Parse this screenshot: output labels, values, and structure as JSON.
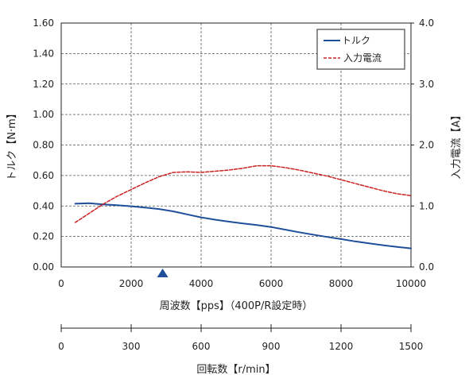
{
  "chart_data": {
    "type": "line",
    "x": {
      "label": "周波数【pps】（400P/R設定時）",
      "range": [
        0,
        10000
      ],
      "ticks": [
        "0",
        "2000",
        "4000",
        "6000",
        "8000",
        "10000"
      ],
      "tick_values": [
        0,
        2000,
        4000,
        6000,
        8000,
        10000
      ]
    },
    "x2": {
      "label": "回転数【r/min】",
      "range": [
        0,
        1500
      ],
      "ticks": [
        "0",
        "300",
        "600",
        "900",
        "1200",
        "1500"
      ],
      "tick_values": [
        0,
        300,
        600,
        900,
        1200,
        1500
      ]
    },
    "y_left": {
      "label": "トルク【N·m】",
      "range": [
        0,
        1.6
      ],
      "ticks": [
        "0.00",
        "0.20",
        "0.40",
        "0.60",
        "0.80",
        "1.00",
        "1.20",
        "1.40",
        "1.60"
      ],
      "tick_values": [
        0,
        0.2,
        0.4,
        0.6,
        0.8,
        1.0,
        1.2,
        1.4,
        1.6
      ]
    },
    "y_right": {
      "label": "入力電流【A】",
      "range": [
        0,
        4.0
      ],
      "ticks": [
        "0.0",
        "1.0",
        "2.0",
        "3.0",
        "4.0"
      ],
      "tick_values": [
        0,
        1.0,
        2.0,
        3.0,
        4.0
      ]
    },
    "grid": true,
    "legend_position": "top-right",
    "marker": {
      "x": 2900,
      "color": "#1f4e9a"
    },
    "series": [
      {
        "name": "トルク",
        "axis": "left",
        "style": "solid",
        "color": "#1f4e9a",
        "x": [
          400,
          800,
          1200,
          1600,
          2000,
          2400,
          2800,
          3200,
          3600,
          4000,
          4400,
          4800,
          5200,
          5600,
          6000,
          6400,
          6800,
          7200,
          7600,
          8000,
          8400,
          8800,
          9200,
          9600,
          10000
        ],
        "y": [
          0.415,
          0.418,
          0.41,
          0.405,
          0.398,
          0.39,
          0.38,
          0.365,
          0.345,
          0.325,
          0.31,
          0.297,
          0.285,
          0.275,
          0.262,
          0.245,
          0.228,
          0.212,
          0.197,
          0.183,
          0.168,
          0.155,
          0.143,
          0.132,
          0.122
        ]
      },
      {
        "name": "入力電流",
        "axis": "right",
        "style": "dashed",
        "color": "#cc2222",
        "x": [
          400,
          800,
          1200,
          1600,
          2000,
          2400,
          2800,
          3200,
          3600,
          4000,
          4400,
          4800,
          5200,
          5600,
          6000,
          6400,
          6800,
          7200,
          7600,
          8000,
          8400,
          8800,
          9200,
          9600,
          10000
        ],
        "y": [
          0.73,
          0.88,
          1.03,
          1.16,
          1.27,
          1.38,
          1.48,
          1.55,
          1.56,
          1.55,
          1.57,
          1.59,
          1.62,
          1.66,
          1.66,
          1.63,
          1.59,
          1.54,
          1.49,
          1.43,
          1.37,
          1.31,
          1.25,
          1.2,
          1.17
        ]
      }
    ]
  }
}
